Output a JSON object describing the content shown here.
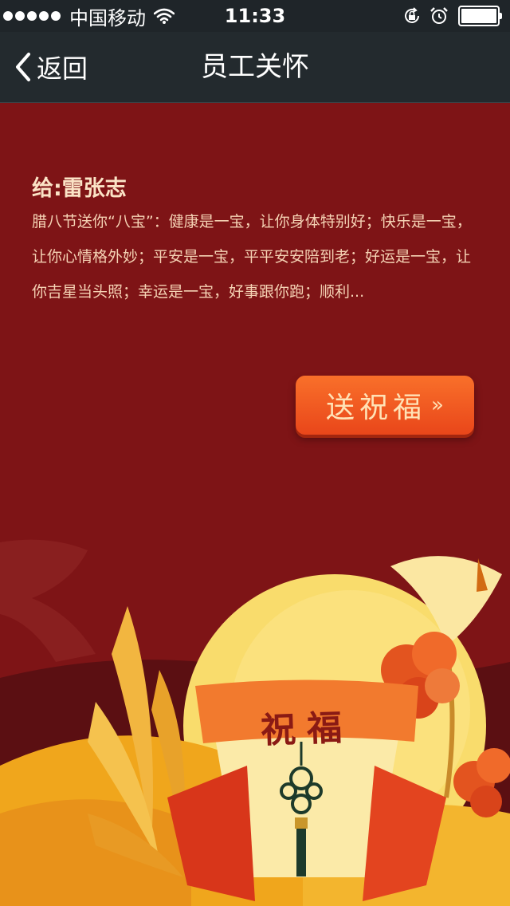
{
  "status_bar": {
    "carrier": "中国移动",
    "time": "11:33",
    "signal_bars": 5,
    "battery_level": 1.0,
    "icons": [
      "signal-dots-icon",
      "wifi-icon",
      "rotation-lock-icon",
      "alarm-icon",
      "battery-icon"
    ]
  },
  "nav": {
    "back_label": "返回",
    "back_icon": "chevron-left-icon",
    "title": "员工关怀"
  },
  "greeting": {
    "recipient": "给:雷张志",
    "message": "腊八节送你“八宝”：健康是一宝，让你身体特别好；快乐是一宝，让你心情格外妙；平安是一宝，平平安安陪到老；好运是一宝，让你吉星当头照；幸运是一宝，好事跟你跑；顺利..."
  },
  "actions": {
    "send_label": "送祝福",
    "send_arrow": "»"
  },
  "illustration": {
    "card_text": "祝福"
  },
  "colors": {
    "background": "#7e1416",
    "nav_background": "#232a2e",
    "button": "#f1571f",
    "text": "#f5d2b4",
    "moon": "#f9dc6c"
  }
}
